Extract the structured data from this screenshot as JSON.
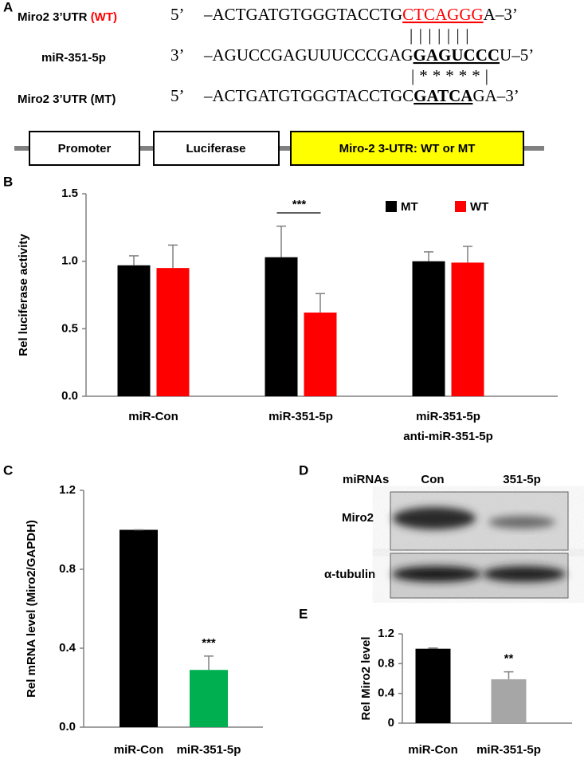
{
  "panel_labels": [
    "A",
    "B",
    "C",
    "D",
    "E"
  ],
  "panel_a": {
    "rows": [
      {
        "name": "Miro2 3’UTR ",
        "name_tag": "(WT)",
        "end5": "5’",
        "seq": "–ACTGATGTGGGTACCTG",
        "site": "CTCAGGG",
        "tail": "A–3’"
      },
      {
        "name": "miR-351-5p",
        "end5": "3’",
        "seq": "–AGUCCGAGUUUCCCGAG",
        "site": "GAGUCCC",
        "tail": "U–5’"
      },
      {
        "name": "Miro2 3’UTR (MT)",
        "end5": "5’",
        "seq": "–ACTGATGTGGGTACCTGC",
        "site": "GATCA",
        "tail": "GA–3’"
      }
    ],
    "pairing": [
      "|||||||",
      "|*****|"
    ],
    "construct": [
      "Promoter",
      "Luciferase",
      "Miro-2 3-UTR: WT or MT"
    ]
  },
  "panel_d": {
    "header": "miRNAs",
    "lanes": [
      "Con",
      "351-5p"
    ],
    "blots": [
      "Miro2",
      "α-tubulin"
    ]
  },
  "chart_data": [
    {
      "type": "bar",
      "y_label": "Rel luciferase activity",
      "categories": [
        [
          "miR-Con"
        ],
        [
          "miR-351-5p"
        ],
        [
          "miR-351-5p",
          "anti-miR-351-5p"
        ]
      ],
      "series": [
        {
          "name": "MT",
          "color": "#000000",
          "values": [
            0.97,
            1.03,
            1.0
          ],
          "errors": [
            0.07,
            0.23,
            0.07
          ]
        },
        {
          "name": "WT",
          "color": "#ff0000",
          "values": [
            0.95,
            0.62,
            0.99
          ],
          "errors": [
            0.17,
            0.14,
            0.12
          ]
        }
      ],
      "ylim": [
        0,
        1.5
      ],
      "yticks": [
        {
          "value": 0,
          "label": "0.0"
        },
        0.5,
        {
          "value": 1,
          "label": "1.0"
        },
        1.5
      ],
      "annotation": "***",
      "legend": "top-right"
    },
    {
      "type": "bar",
      "y_label": "Rel mRNA level (Miro2/GAPDH)",
      "categories": [
        [
          "miR-Con"
        ],
        [
          "miR-351-5p"
        ]
      ],
      "values": [
        1.0,
        0.29
      ],
      "errors": [
        0.0,
        0.07
      ],
      "colors": [
        "#000000",
        "#00b050"
      ],
      "ylim": [
        0,
        1.2
      ],
      "yticks": [
        {
          "value": 0,
          "label": "0.0"
        },
        0.4,
        0.8,
        1.2
      ],
      "annotation": "***"
    },
    {
      "type": "bar",
      "y_label": "Rel Miro2 level",
      "categories": [
        [
          "miR-Con"
        ],
        [
          "miR-351-5p"
        ]
      ],
      "values": [
        1.0,
        0.59
      ],
      "errors": [
        0.01,
        0.1
      ],
      "colors": [
        "#000000",
        "#a6a6a6"
      ],
      "ylim": [
        0,
        1.2
      ],
      "yticks": [
        0,
        0.4,
        0.8,
        1.2
      ],
      "annotation": "**"
    }
  ]
}
